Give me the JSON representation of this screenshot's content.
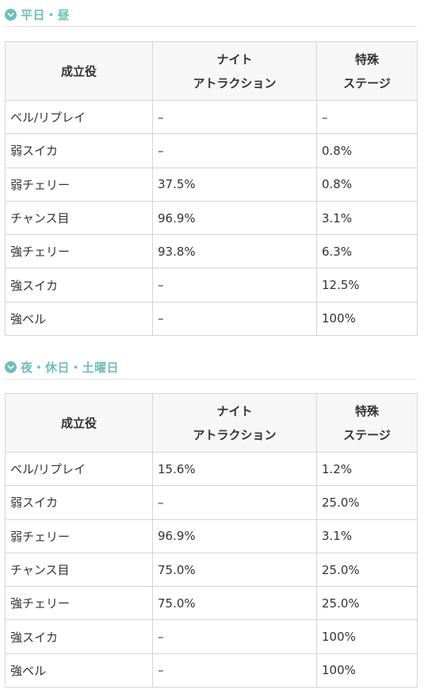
{
  "sections": [
    {
      "heading": "平日・昼",
      "headers": {
        "role": "成立役",
        "night_line1": "ナイト",
        "night_line2": "アトラクション",
        "special_line1": "特殊",
        "special_line2": "ステージ"
      },
      "rows": [
        {
          "role": "ベル/リプレイ",
          "night": "–",
          "special": "–"
        },
        {
          "role": "弱スイカ",
          "night": "–",
          "special": "0.8%"
        },
        {
          "role": "弱チェリー",
          "night": "37.5%",
          "special": "0.8%"
        },
        {
          "role": "チャンス目",
          "night": "96.9%",
          "special": "3.1%"
        },
        {
          "role": "強チェリー",
          "night": "93.8%",
          "special": "6.3%"
        },
        {
          "role": "強スイカ",
          "night": "–",
          "special": "12.5%"
        },
        {
          "role": "強ベル",
          "night": "–",
          "special": "100%"
        }
      ]
    },
    {
      "heading": "夜・休日・土曜日",
      "headers": {
        "role": "成立役",
        "night_line1": "ナイト",
        "night_line2": "アトラクション",
        "special_line1": "特殊",
        "special_line2": "ステージ"
      },
      "rows": [
        {
          "role": "ベル/リプレイ",
          "night": "15.6%",
          "special": "1.2%"
        },
        {
          "role": "弱スイカ",
          "night": "–",
          "special": "25.0%"
        },
        {
          "role": "弱チェリー",
          "night": "96.9%",
          "special": "3.1%"
        },
        {
          "role": "チャンス目",
          "night": "75.0%",
          "special": "25.0%"
        },
        {
          "role": "強チェリー",
          "night": "75.0%",
          "special": "25.0%"
        },
        {
          "role": "強スイカ",
          "night": "–",
          "special": "100%"
        },
        {
          "role": "強ベル",
          "night": "–",
          "special": "100%"
        }
      ]
    }
  ],
  "icons": {
    "heading_icon": "check-circle-icon",
    "accent_color": "#6fbfb6"
  }
}
